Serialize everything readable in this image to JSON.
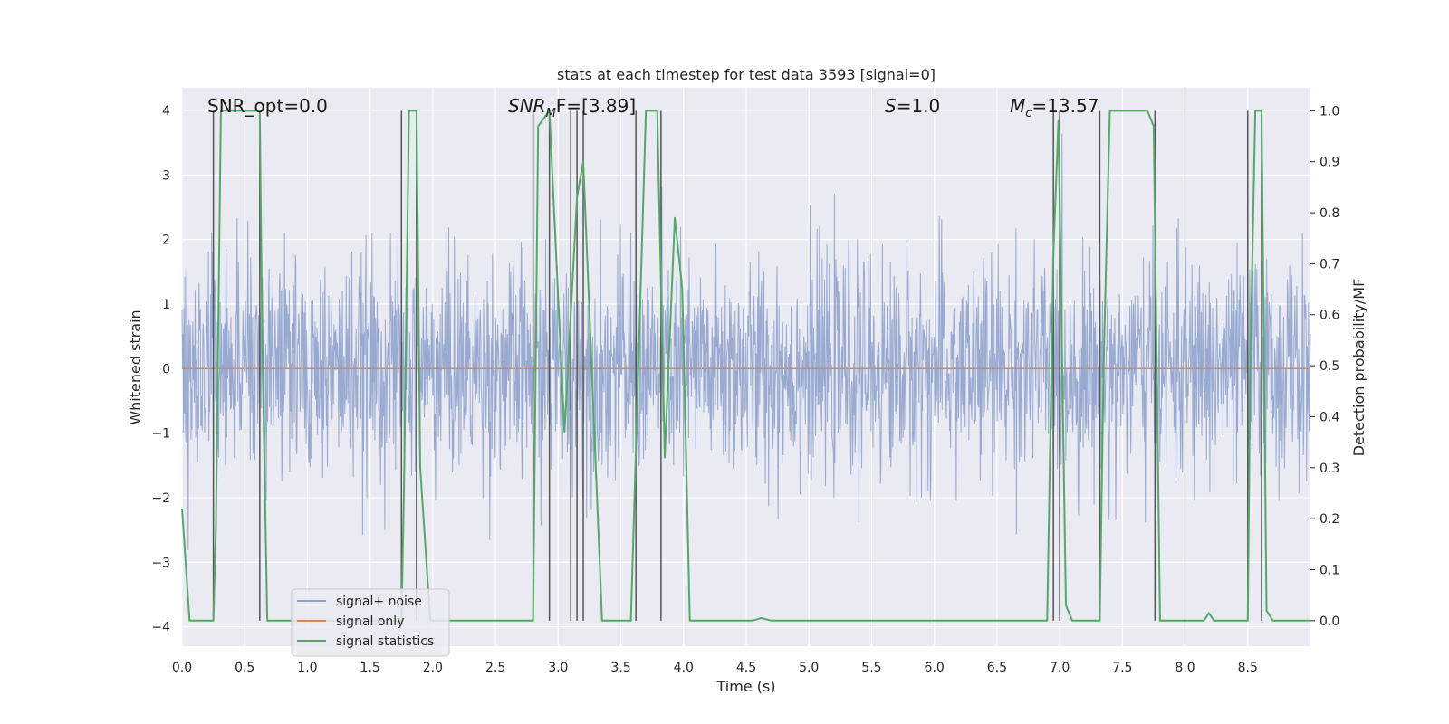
{
  "chart_data": {
    "type": "line",
    "title": "stats at each timestep for test data 3593 [signal=0]",
    "xlabel": "Time (s)",
    "ylabel_left": "Whitened strain",
    "ylabel_right": "Detection probability/MF",
    "xlim": [
      0.0,
      9.0
    ],
    "ylim_left": [
      -4.3,
      4.35
    ],
    "ylim_right": [
      -0.05,
      1.045
    ],
    "xticks": [
      0.0,
      0.5,
      1.0,
      1.5,
      2.0,
      2.5,
      3.0,
      3.5,
      4.0,
      4.5,
      5.0,
      5.5,
      6.0,
      6.5,
      7.0,
      7.5,
      8.0,
      8.5
    ],
    "xtick_labels": [
      "0.0",
      "0.5",
      "1.0",
      "1.5",
      "2.0",
      "2.5",
      "3.0",
      "3.5",
      "4.0",
      "4.5",
      "5.0",
      "5.5",
      "6.0",
      "6.5",
      "7.0",
      "7.5",
      "8.0",
      "8.5"
    ],
    "yticks_left": [
      4,
      3,
      2,
      1,
      0,
      -1,
      -2,
      -3,
      -4
    ],
    "ytick_labels_left": [
      "4",
      "3",
      "2",
      "1",
      "0",
      "−1",
      "−2",
      "−3",
      "−4"
    ],
    "yticks_right": [
      1.0,
      0.9,
      0.8,
      0.7,
      0.6,
      0.5,
      0.4,
      0.3,
      0.2,
      0.1,
      0.0
    ],
    "ytick_labels_right": [
      "1.0",
      "0.9",
      "0.8",
      "0.7",
      "0.6",
      "0.5",
      "0.4",
      "0.3",
      "0.2",
      "0.1",
      "0.0"
    ],
    "grid": true,
    "legend_position": "lower-left",
    "annotations": {
      "snr_opt": "SNR_opt=0.0",
      "snr_mf_base": "SNR",
      "snr_mf_sub": "M",
      "snr_mf_rest": "F=[3.89]",
      "s_base": "S",
      "s_rest": "=1.0",
      "mc_base": "M",
      "mc_sub": "c",
      "mc_rest": "=13.57"
    },
    "series": [
      {
        "name": "signal+ noise",
        "color": "#8a9fcb",
        "axis": "left",
        "kind": "noise",
        "typical_envelope": [
          -1.5,
          1.6
        ],
        "extremes": [
          -3.6,
          4.0
        ]
      },
      {
        "name": "signal only",
        "color": "#dd8452",
        "axis": "left",
        "kind": "line",
        "x": [
          0.0,
          9.0
        ],
        "y": [
          0.0,
          0.0
        ]
      },
      {
        "name": "signal statistics",
        "color": "#55a868",
        "axis": "right",
        "kind": "line",
        "x": [
          0.0,
          0.06,
          0.25,
          0.27,
          0.31,
          0.62,
          0.64,
          0.68,
          1.75,
          1.77,
          1.81,
          1.87,
          1.9,
          1.98,
          2.8,
          2.84,
          2.93,
          3.05,
          3.15,
          3.2,
          3.35,
          3.58,
          3.64,
          3.7,
          3.79,
          3.85,
          3.93,
          3.99,
          4.05,
          4.55,
          4.62,
          4.7,
          6.9,
          6.95,
          6.99,
          7.05,
          7.1,
          7.32,
          7.35,
          7.4,
          7.7,
          7.75,
          7.8,
          8.15,
          8.19,
          8.23,
          8.5,
          8.52,
          8.56,
          8.61,
          8.65,
          8.7,
          9.0
        ],
        "y": [
          0.22,
          0.0,
          0.0,
          0.18,
          1.0,
          1.0,
          0.55,
          0.0,
          0.0,
          0.25,
          1.0,
          1.0,
          0.3,
          0.0,
          0.0,
          0.97,
          1.0,
          0.37,
          0.83,
          0.9,
          0.0,
          0.0,
          0.5,
          1.0,
          1.0,
          0.32,
          0.79,
          0.65,
          0.0,
          0.0,
          0.005,
          0.0,
          0.0,
          0.72,
          0.98,
          0.03,
          0.0,
          0.0,
          0.5,
          1.0,
          1.0,
          0.97,
          0.0,
          0.0,
          0.015,
          0.0,
          0.0,
          0.5,
          1.0,
          1.0,
          0.02,
          0.0,
          0.0
        ]
      }
    ],
    "vertical_markers": {
      "color": "#555555",
      "x": [
        0.25,
        0.62,
        1.75,
        1.87,
        2.8,
        2.93,
        3.1,
        3.15,
        3.2,
        3.62,
        3.82,
        6.95,
        7.0,
        7.32,
        7.76,
        8.5,
        8.61
      ]
    }
  }
}
